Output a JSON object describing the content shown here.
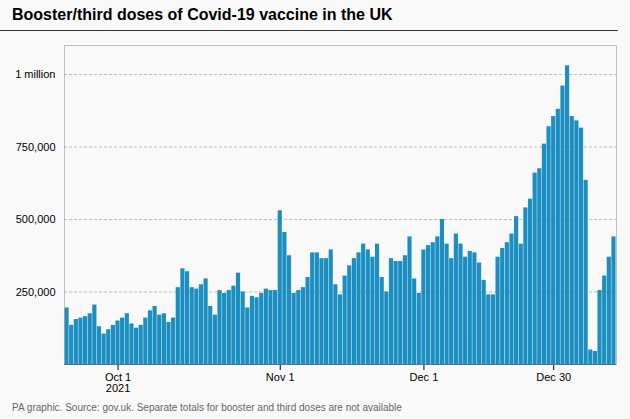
{
  "chart_data": {
    "type": "bar",
    "title": "Booster/third doses of Covid-19 vaccine in the UK",
    "caption": "PA graphic. Source: gov.uk. Separate totals for booster and third doses are not available",
    "categories": [
      null,
      null,
      null,
      null,
      null,
      null,
      null,
      null,
      null,
      null,
      null,
      "Oct 1\n2021",
      null,
      null,
      null,
      null,
      null,
      null,
      null,
      null,
      null,
      null,
      null,
      null,
      null,
      null,
      null,
      null,
      null,
      null,
      null,
      null,
      null,
      null,
      null,
      null,
      null,
      null,
      null,
      null,
      null,
      null,
      null,
      null,
      null,
      null,
      "Nov 1",
      null,
      null,
      null,
      null,
      null,
      null,
      null,
      null,
      null,
      null,
      null,
      null,
      null,
      null,
      null,
      null,
      null,
      null,
      null,
      null,
      null,
      null,
      null,
      null,
      null,
      null,
      null,
      null,
      null,
      null,
      "Dec 1",
      null,
      null,
      null,
      null,
      null,
      null,
      null,
      null,
      null,
      null,
      null,
      null,
      null,
      null,
      null,
      null,
      null,
      null,
      null,
      null,
      null,
      null,
      null,
      null,
      null,
      null,
      null,
      "Dec 30",
      null,
      null,
      null,
      null,
      null,
      null,
      null,
      null,
      null,
      null,
      null,
      null,
      null
    ],
    "values": [
      195000,
      135000,
      155000,
      160000,
      165000,
      175000,
      205000,
      130000,
      105000,
      120000,
      135000,
      150000,
      160000,
      175000,
      140000,
      125000,
      135000,
      160000,
      185000,
      200000,
      170000,
      175000,
      145000,
      160000,
      265000,
      330000,
      320000,
      265000,
      260000,
      275000,
      295000,
      200000,
      170000,
      255000,
      245000,
      255000,
      270000,
      315000,
      250000,
      195000,
      235000,
      230000,
      245000,
      260000,
      255000,
      255000,
      530000,
      455000,
      375000,
      245000,
      255000,
      265000,
      300000,
      385000,
      385000,
      365000,
      365000,
      395000,
      275000,
      240000,
      305000,
      340000,
      365000,
      385000,
      415000,
      395000,
      370000,
      415000,
      300000,
      250000,
      365000,
      355000,
      355000,
      375000,
      440000,
      295000,
      245000,
      395000,
      410000,
      420000,
      440000,
      500000,
      415000,
      365000,
      450000,
      415000,
      370000,
      390000,
      385000,
      350000,
      290000,
      240000,
      240000,
      370000,
      400000,
      420000,
      450000,
      510000,
      415000,
      540000,
      570000,
      660000,
      675000,
      760000,
      820000,
      855000,
      880000,
      960000,
      1030000,
      855000,
      840000,
      815000,
      635000,
      50000,
      45000,
      255000,
      305000,
      370000,
      440000
    ],
    "color": "#1b8fc2",
    "ylim": [
      0,
      1100000
    ],
    "yticks": [
      {
        "value": 250000,
        "label": "250,000"
      },
      {
        "value": 500000,
        "label": "500,000"
      },
      {
        "value": 750000,
        "label": "750,000"
      },
      {
        "value": 1000000,
        "label": "1 million"
      }
    ],
    "grid": true
  }
}
